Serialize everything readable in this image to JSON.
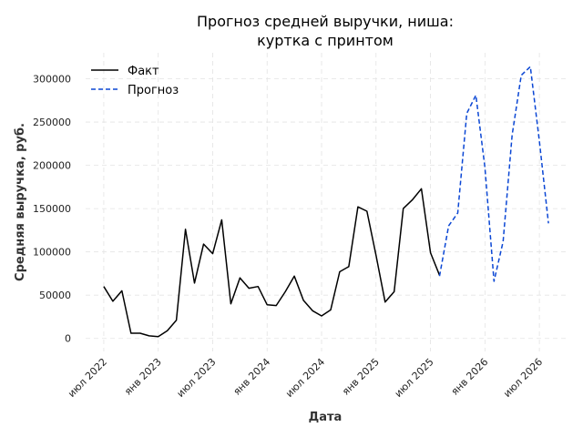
{
  "chart_data": {
    "type": "line",
    "title_lines": [
      "Прогноз средней выручки, ниша:",
      "куртка с принтом"
    ],
    "xlabel": "Дата",
    "ylabel": "Средняя выручка, руб.",
    "x_ticks": [
      "июл 2022",
      "янв 2023",
      "июл 2023",
      "янв 2024",
      "июл 2024",
      "янв 2025",
      "июл 2025",
      "янв 2026",
      "июл 2026"
    ],
    "y_ticks": [
      "0",
      "50000",
      "100000",
      "150000",
      "200000",
      "250000",
      "300000"
    ],
    "ylim": [
      -15000,
      330000
    ],
    "grid": true,
    "legend_position": "top-left",
    "series": [
      {
        "name": "Факт",
        "color": "#000000",
        "style": "solid",
        "points": [
          [
            "2022-07",
            60000
          ],
          [
            "2022-08",
            43000
          ],
          [
            "2022-09",
            55000
          ],
          [
            "2022-10",
            6000
          ],
          [
            "2022-11",
            6000
          ],
          [
            "2022-12",
            3000
          ],
          [
            "2023-01",
            2000
          ],
          [
            "2023-02",
            9000
          ],
          [
            "2023-03",
            21000
          ],
          [
            "2023-04",
            126000
          ],
          [
            "2023-05",
            64000
          ],
          [
            "2023-06",
            109000
          ],
          [
            "2023-07",
            98000
          ],
          [
            "2023-08",
            137000
          ],
          [
            "2023-09",
            40000
          ],
          [
            "2023-10",
            70000
          ],
          [
            "2023-11",
            58000
          ],
          [
            "2023-12",
            60000
          ],
          [
            "2024-01",
            39000
          ],
          [
            "2024-02",
            38000
          ],
          [
            "2024-03",
            54000
          ],
          [
            "2024-04",
            72000
          ],
          [
            "2024-05",
            44000
          ],
          [
            "2024-06",
            32000
          ],
          [
            "2024-07",
            26000
          ],
          [
            "2024-08",
            33000
          ],
          [
            "2024-09",
            77000
          ],
          [
            "2024-10",
            83000
          ],
          [
            "2024-11",
            152000
          ],
          [
            "2024-12",
            147000
          ],
          [
            "2025-01",
            96000
          ],
          [
            "2025-02",
            42000
          ],
          [
            "2025-03",
            54000
          ],
          [
            "2025-04",
            150000
          ],
          [
            "2025-05",
            160000
          ],
          [
            "2025-06",
            173000
          ],
          [
            "2025-07",
            99000
          ],
          [
            "2025-08",
            73000
          ]
        ]
      },
      {
        "name": "Прогноз",
        "color": "#0a46d4",
        "style": "dashed",
        "points": [
          [
            "2025-08",
            72000
          ],
          [
            "2025-09",
            130000
          ],
          [
            "2025-10",
            145000
          ],
          [
            "2025-11",
            260000
          ],
          [
            "2025-12",
            281000
          ],
          [
            "2026-01",
            198000
          ],
          [
            "2026-02",
            66000
          ],
          [
            "2026-03",
            112000
          ],
          [
            "2026-04",
            235000
          ],
          [
            "2026-05",
            304000
          ],
          [
            "2026-06",
            314000
          ],
          [
            "2026-07",
            228000
          ],
          [
            "2026-08",
            133000
          ]
        ]
      }
    ]
  }
}
